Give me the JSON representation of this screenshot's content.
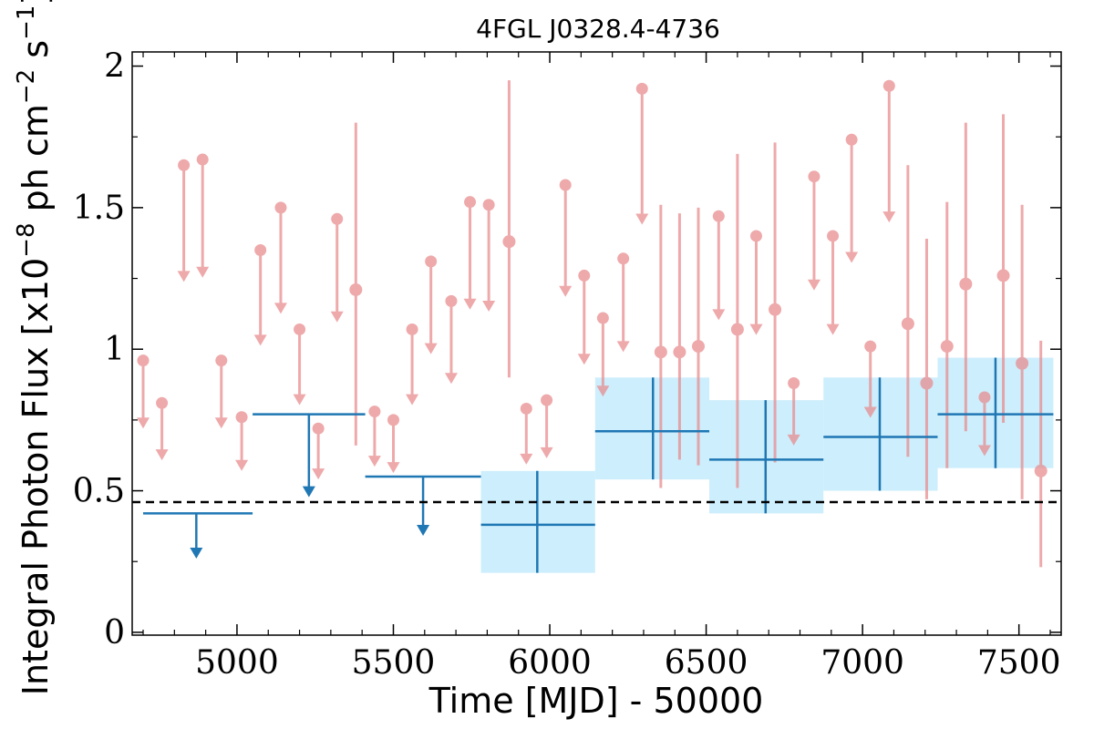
{
  "chart_data": {
    "type": "scatter",
    "title": "4FGL J0328.4-4736",
    "xlabel": "Time [MJD] - 50000",
    "ylabel_parts": {
      "a": "Integral Photon Flux [x10",
      "b": "−8",
      "c": " ph cm",
      "d": "−2",
      "e": " s",
      "f": "−1",
      "g": "]"
    },
    "xlim": [
      4665,
      7635
    ],
    "ylim": [
      -0.01,
      2.05
    ],
    "xticks": [
      5000,
      5500,
      6000,
      6500,
      7000,
      7500
    ],
    "xtick_labels": [
      "5000",
      "5500",
      "6000",
      "6500",
      "7000",
      "7500"
    ],
    "yticks": [
      0,
      0.5,
      1,
      1.5,
      2
    ],
    "ytick_labels": [
      "0",
      "0.5",
      "1",
      "1.5",
      "2"
    ],
    "reference_line": {
      "y": 0.46,
      "style": "dashed",
      "color": "#000000"
    },
    "colors": {
      "detail": "#e8898c",
      "wide": "#1f77b4",
      "band": "#cdeefc"
    },
    "detail_upper_limits": [
      {
        "x": 4700,
        "y": 0.96
      },
      {
        "x": 4760,
        "y": 0.81
      },
      {
        "x": 4830,
        "y": 1.65
      },
      {
        "x": 4890,
        "y": 1.67
      },
      {
        "x": 4950,
        "y": 0.96
      },
      {
        "x": 5015,
        "y": 0.76
      },
      {
        "x": 5075,
        "y": 1.35
      },
      {
        "x": 5140,
        "y": 1.5
      },
      {
        "x": 5200,
        "y": 1.07
      },
      {
        "x": 5260,
        "y": 0.72
      },
      {
        "x": 5320,
        "y": 1.46
      },
      {
        "x": 5440,
        "y": 0.78
      },
      {
        "x": 5500,
        "y": 0.75
      },
      {
        "x": 5560,
        "y": 1.07
      },
      {
        "x": 5620,
        "y": 1.31
      },
      {
        "x": 5685,
        "y": 1.17
      },
      {
        "x": 5745,
        "y": 1.52
      },
      {
        "x": 5805,
        "y": 1.51
      },
      {
        "x": 5925,
        "y": 0.79
      },
      {
        "x": 5990,
        "y": 0.82
      },
      {
        "x": 6050,
        "y": 1.58
      },
      {
        "x": 6110,
        "y": 1.26
      },
      {
        "x": 6170,
        "y": 1.11
      },
      {
        "x": 6235,
        "y": 1.32
      },
      {
        "x": 6295,
        "y": 1.92
      },
      {
        "x": 6540,
        "y": 1.47
      },
      {
        "x": 6660,
        "y": 1.4
      },
      {
        "x": 6780,
        "y": 0.88
      },
      {
        "x": 6845,
        "y": 1.61
      },
      {
        "x": 6905,
        "y": 1.4
      },
      {
        "x": 6965,
        "y": 1.74
      },
      {
        "x": 7025,
        "y": 1.01
      },
      {
        "x": 7085,
        "y": 1.93
      },
      {
        "x": 7390,
        "y": 0.83
      }
    ],
    "detail_detections": [
      {
        "x": 5380,
        "y": 1.21,
        "ylow": 0.66,
        "yhigh": 1.8
      },
      {
        "x": 5870,
        "y": 1.38,
        "ylow": 0.9,
        "yhigh": 1.95
      },
      {
        "x": 6355,
        "y": 0.99,
        "ylow": 0.51,
        "yhigh": 1.51
      },
      {
        "x": 6415,
        "y": 0.99,
        "ylow": 0.61,
        "yhigh": 1.48
      },
      {
        "x": 6475,
        "y": 1.01,
        "ylow": 0.59,
        "yhigh": 1.5
      },
      {
        "x": 6600,
        "y": 1.07,
        "ylow": 0.51,
        "yhigh": 1.69
      },
      {
        "x": 6720,
        "y": 1.14,
        "ylow": 0.6,
        "yhigh": 1.73
      },
      {
        "x": 7145,
        "y": 1.09,
        "ylow": 0.62,
        "yhigh": 1.65
      },
      {
        "x": 7205,
        "y": 0.88,
        "ylow": 0.47,
        "yhigh": 1.39
      },
      {
        "x": 7270,
        "y": 1.01,
        "ylow": 0.58,
        "yhigh": 1.52
      },
      {
        "x": 7330,
        "y": 1.23,
        "ylow": 0.71,
        "yhigh": 1.8
      },
      {
        "x": 7450,
        "y": 1.26,
        "ylow": 0.74,
        "yhigh": 1.83
      },
      {
        "x": 7510,
        "y": 0.95,
        "ylow": 0.47,
        "yhigh": 1.51
      },
      {
        "x": 7570,
        "y": 0.57,
        "ylow": 0.23,
        "yhigh": 1.03
      }
    ],
    "wide_upper_limits": [
      {
        "x0": 4700,
        "x1": 5050,
        "xc": 4870,
        "y": 0.42
      },
      {
        "x0": 5050,
        "x1": 5410,
        "xc": 5230,
        "y": 0.77
      },
      {
        "x0": 5410,
        "x1": 5780,
        "xc": 5595,
        "y": 0.55
      }
    ],
    "wide_detections": [
      {
        "x0": 5780,
        "x1": 6145,
        "xc": 5960,
        "y": 0.38,
        "ylow": 0.21,
        "yhigh": 0.57
      },
      {
        "x0": 6145,
        "x1": 6510,
        "xc": 6330,
        "y": 0.71,
        "ylow": 0.54,
        "yhigh": 0.9
      },
      {
        "x0": 6510,
        "x1": 6875,
        "xc": 6690,
        "y": 0.61,
        "ylow": 0.42,
        "yhigh": 0.82
      },
      {
        "x0": 6875,
        "x1": 7240,
        "xc": 7055,
        "y": 0.69,
        "ylow": 0.5,
        "yhigh": 0.9
      },
      {
        "x0": 7240,
        "x1": 7610,
        "xc": 7425,
        "y": 0.77,
        "ylow": 0.58,
        "yhigh": 0.97
      }
    ]
  }
}
